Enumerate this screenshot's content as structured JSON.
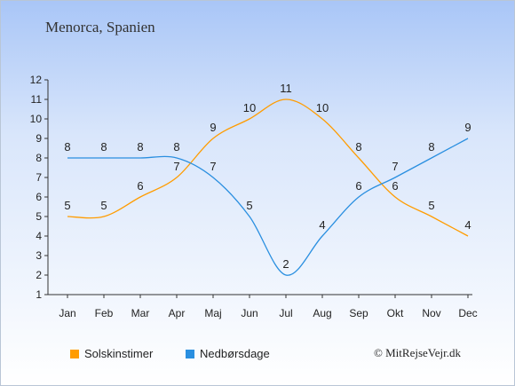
{
  "chart_data": {
    "type": "line",
    "title": "Menorca, Spanien",
    "categories": [
      "Jan",
      "Feb",
      "Mar",
      "Apr",
      "Maj",
      "Jun",
      "Jul",
      "Aug",
      "Sep",
      "Okt",
      "Nov",
      "Dec"
    ],
    "ylim": [
      1,
      12
    ],
    "yticks": [
      1,
      2,
      3,
      4,
      5,
      6,
      7,
      8,
      9,
      10,
      11,
      12
    ],
    "grid": false,
    "legend_position": "bottom-left",
    "series": [
      {
        "name": "Solskinstimer",
        "color": "#ff9c00",
        "values": [
          5,
          5,
          6,
          7,
          9,
          10,
          11,
          10,
          8,
          6,
          5,
          4
        ]
      },
      {
        "name": "Nedbørsdage",
        "color": "#2a8fe0",
        "values": [
          8,
          8,
          8,
          8,
          7,
          5,
          2,
          4,
          6,
          7,
          8,
          9
        ]
      }
    ]
  },
  "credit": "© MitRejseVejr.dk"
}
